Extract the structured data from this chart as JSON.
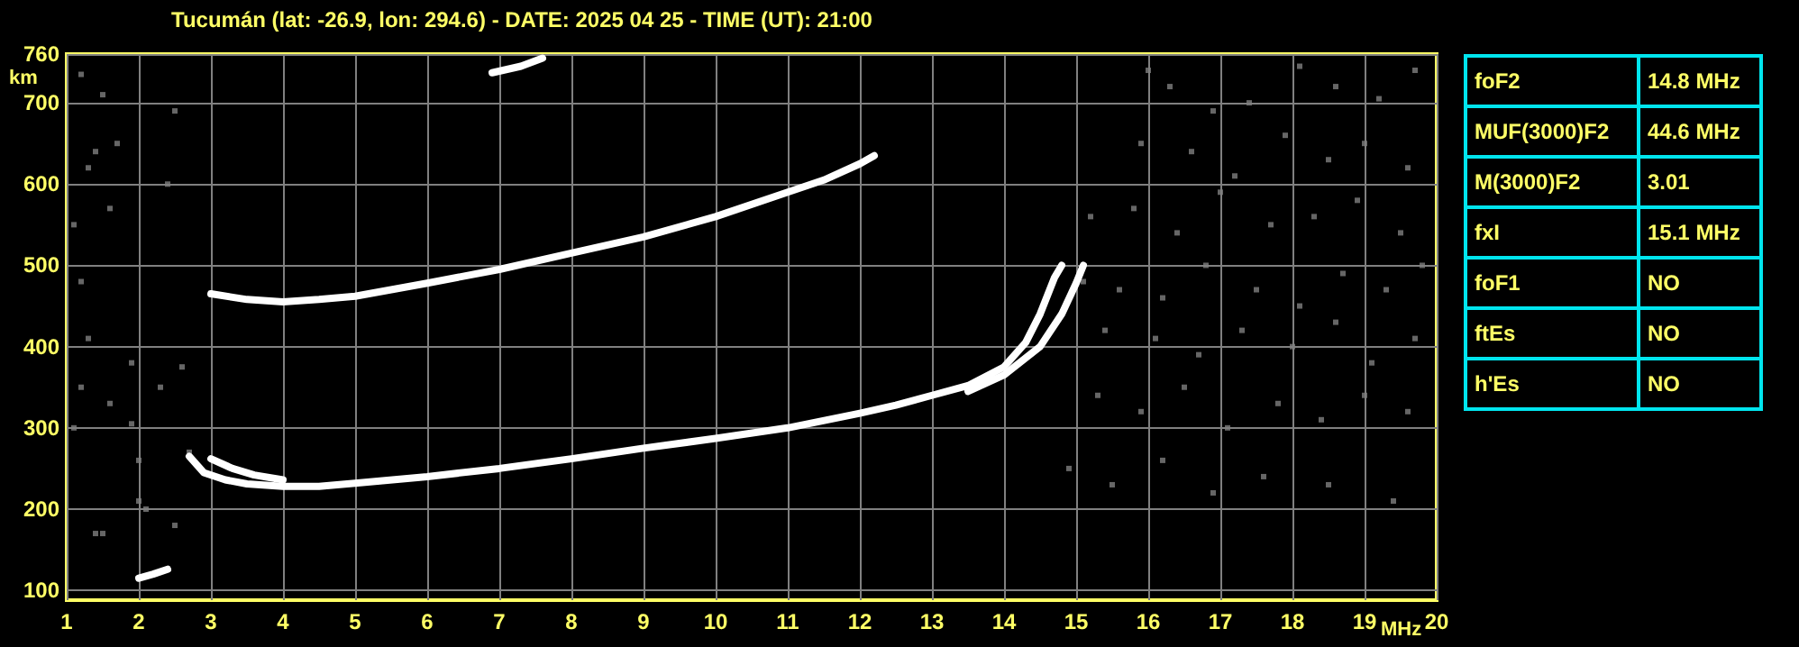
{
  "chart_data": [
    {
      "type": "scatter",
      "title": "Tucumán (lat: -26.9, lon: 294.6) - DATE: 2025 04 25 - TIME (UT): 21:00",
      "xlabel": "MHz",
      "ylabel": "km",
      "xlim": [
        1,
        20
      ],
      "ylim": [
        88,
        760
      ],
      "xticks": [
        1,
        2,
        3,
        4,
        5,
        6,
        7,
        8,
        9,
        10,
        11,
        12,
        13,
        14,
        15,
        16,
        17,
        18,
        19,
        20
      ],
      "yticks": [
        100,
        200,
        300,
        400,
        500,
        600,
        700,
        760
      ],
      "grid": true,
      "series": [
        {
          "type": "line",
          "line_style": "solid",
          "color": "#ffffff",
          "x": [
            2.7,
            2.9,
            3.2,
            3.5,
            4,
            4.5,
            5,
            6,
            7,
            8,
            9,
            10,
            11,
            12,
            12.5,
            13,
            13.5,
            14,
            14.3,
            14.5,
            14.7,
            14.8
          ],
          "values": [
            265,
            245,
            236,
            231,
            228,
            228,
            232,
            240,
            250,
            262,
            275,
            287,
            300,
            318,
            328,
            340,
            352,
            375,
            405,
            440,
            485,
            500
          ]
        },
        {
          "type": "line",
          "line_style": "solid",
          "color": "#ffffff",
          "x": [
            3.0,
            3.3,
            3.6,
            4.0
          ],
          "values": [
            262,
            250,
            242,
            236
          ]
        },
        {
          "type": "line",
          "line_style": "solid",
          "color": "#ffffff",
          "x": [
            13.5,
            14,
            14.5,
            14.8,
            15.0,
            15.1
          ],
          "values": [
            345,
            365,
            400,
            440,
            478,
            500
          ]
        },
        {
          "type": "line",
          "line_style": "solid",
          "color": "#ffffff",
          "x": [
            3,
            3.5,
            4,
            4.5,
            5,
            6,
            7,
            8,
            9,
            10,
            11,
            11.5,
            12,
            12.2
          ],
          "values": [
            465,
            458,
            455,
            458,
            462,
            478,
            495,
            515,
            535,
            560,
            590,
            605,
            625,
            635
          ]
        },
        {
          "type": "line",
          "line_style": "solid",
          "color": "#ffffff",
          "x": [
            6.9,
            7.3,
            7.6
          ],
          "values": [
            737,
            745,
            755
          ]
        },
        {
          "type": "line",
          "line_style": "solid",
          "color": "#ffffff",
          "x": [
            2.0,
            2.2,
            2.4
          ],
          "values": [
            115,
            120,
            126
          ]
        },
        {
          "type": "scatter",
          "marker": "square",
          "color": "#808080",
          "x": [
            1.2,
            1.3,
            1.5,
            1.7,
            1.1,
            1.4,
            1.6,
            1.9,
            2.0,
            2.3,
            2.5,
            1.2,
            1.5,
            2.4,
            1.1,
            1.3,
            2.0,
            2.6,
            1.6,
            1.9,
            1.4,
            2.1,
            1.2,
            2.7,
            2.5,
            16.0,
            16.3,
            16.9,
            17.4,
            18.1,
            18.6,
            19.2,
            19.7,
            15.9,
            16.6,
            17.2,
            17.9,
            18.5,
            19.0,
            19.6,
            15.2,
            15.8,
            16.4,
            17.0,
            17.7,
            18.3,
            18.9,
            19.5,
            15.1,
            15.6,
            16.2,
            16.8,
            17.5,
            18.1,
            18.7,
            19.3,
            19.8,
            15.4,
            16.1,
            16.7,
            17.3,
            18.0,
            18.6,
            19.1,
            19.7,
            15.3,
            15.9,
            16.5,
            17.1,
            17.8,
            18.4,
            19.0,
            19.6,
            14.9,
            15.5,
            16.2,
            16.9,
            17.6,
            18.5,
            19.4
          ],
          "values": [
            735,
            620,
            710,
            650,
            550,
            640,
            570,
            380,
            210,
            350,
            690,
            480,
            170,
            600,
            300,
            410,
            260,
            375,
            330,
            305,
            170,
            200,
            350,
            270,
            180,
            740,
            720,
            690,
            700,
            745,
            720,
            705,
            740,
            650,
            640,
            610,
            660,
            630,
            650,
            620,
            560,
            570,
            540,
            590,
            550,
            560,
            580,
            540,
            480,
            470,
            460,
            500,
            470,
            450,
            490,
            470,
            500,
            420,
            410,
            390,
            420,
            400,
            430,
            380,
            410,
            340,
            320,
            350,
            300,
            330,
            310,
            340,
            320,
            250,
            230,
            260,
            220,
            240,
            230,
            210
          ]
        }
      ]
    },
    {
      "type": "other",
      "categories": [
        "foF2",
        "MUF(3000)F2",
        "M(3000)F2",
        "fxI",
        "foF1",
        "ftEs",
        "h'Es"
      ],
      "annotations": [
        "14.8 MHz",
        "44.6 MHz",
        "3.01",
        "15.1 MHz",
        "NO",
        "NO",
        "NO"
      ]
    }
  ]
}
